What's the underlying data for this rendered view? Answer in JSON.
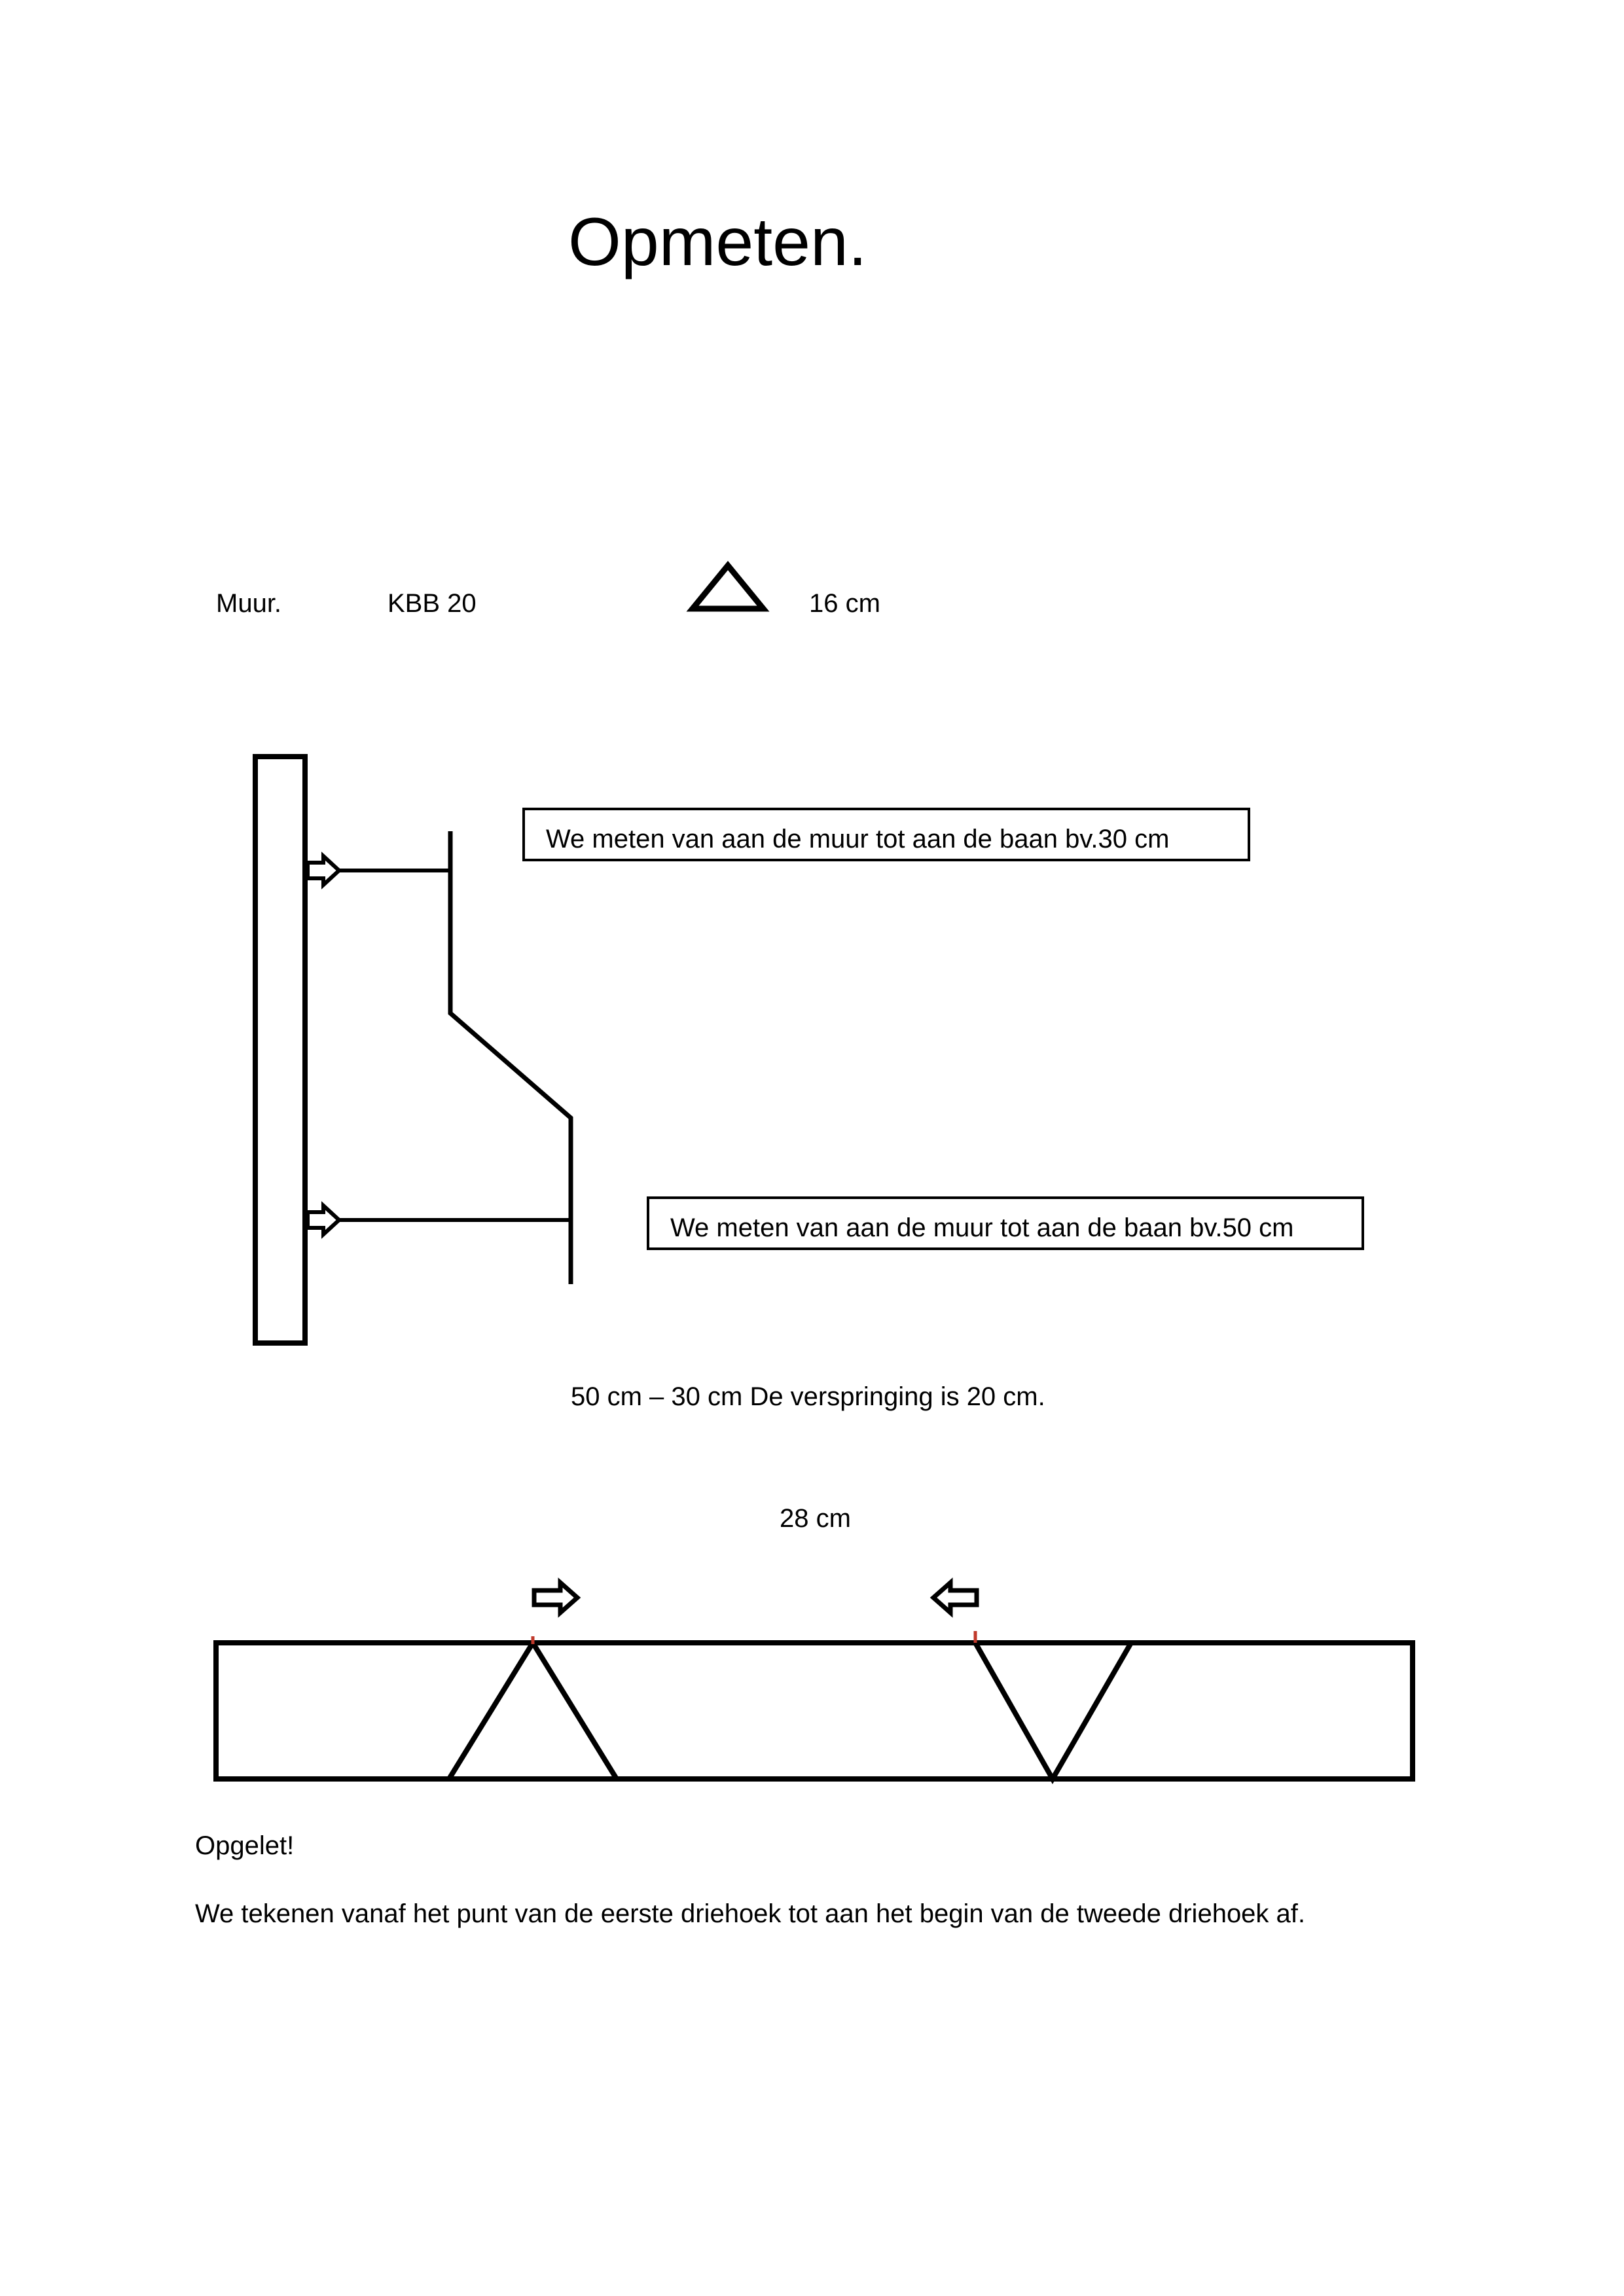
{
  "document": {
    "title": "Opmeten.",
    "header_row": {
      "wall_label": "Muur.",
      "product_label": "KBB 20",
      "triangle_symbol": "triangle-icon",
      "measure_label": "16 cm"
    },
    "notes": {
      "note_top": "We meten van aan de muur tot aan de baan bv.30 cm",
      "note_bottom": "We meten van aan de muur tot aan de baan bv.50 cm"
    },
    "calculation": "50 cm – 30 cm De verspringing is 20 cm.",
    "distance_label": "28 cm",
    "warning_title": "Opgelet!",
    "warning_text": "We tekenen vanaf het punt van de eerste driehoek tot aan het begin van de tweede driehoek af."
  },
  "colors": {
    "ink": "#000000",
    "marker": "#c0392b",
    "background": "#ffffff"
  }
}
